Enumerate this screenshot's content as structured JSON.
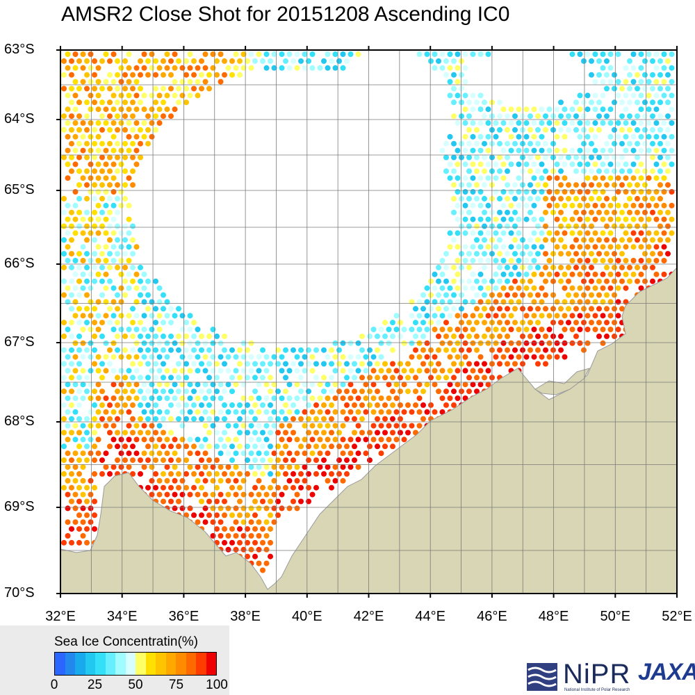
{
  "title": "AMSR2 Close Shot for 20151208 Ascending IC0",
  "lat_labels": [
    "63°S",
    "64°S",
    "65°S",
    "66°S",
    "67°S",
    "68°S",
    "69°S",
    "70°S"
  ],
  "lon_labels": [
    "32°E",
    "34°E",
    "36°E",
    "38°E",
    "40°E",
    "42°E",
    "44°E",
    "46°E",
    "48°E",
    "50°E",
    "52°E"
  ],
  "legend": {
    "title": "Sea Ice Concentratin(%)",
    "ticks": [
      "0",
      "25",
      "50",
      "75",
      "100"
    ],
    "colors": [
      "#2a66ff",
      "#2288ee",
      "#19aaee",
      "#22c8f0",
      "#33e0f8",
      "#66f0ff",
      "#a0fcff",
      "#d8ffff",
      "#ffff66",
      "#ffe000",
      "#ffc400",
      "#ffa800",
      "#ff8c00",
      "#ff6a00",
      "#ff3c00",
      "#ee0000"
    ]
  },
  "colors": {
    "land": "#d8d6b4",
    "coast": "#9a9a9a",
    "grid": "#7a7a7a",
    "border": "#000000",
    "ocean": "#ffffff"
  },
  "logos": {
    "nipr": "NiPR",
    "nipr_subtitle": "National Institute of Polar Research",
    "jaxa": "JAXA"
  }
}
